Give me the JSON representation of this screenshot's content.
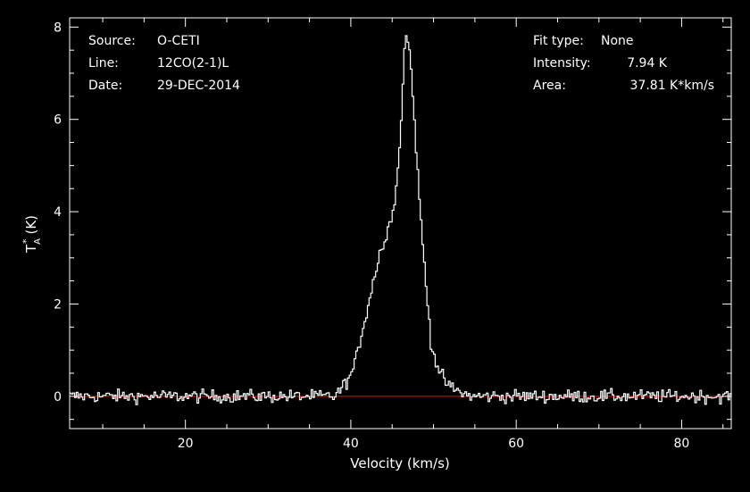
{
  "chart_data": {
    "type": "line",
    "subtype": "step",
    "xlabel": "Velocity (km/s)",
    "ylabel": "T",
    "ylabel_sub": "A",
    "ylabel_sup": "*",
    "ylabel_unit": "(K)",
    "xlim": [
      6,
      86
    ],
    "ylim": [
      -0.7,
      8.2
    ],
    "xticks": [
      20,
      40,
      60,
      80
    ],
    "yticks": [
      0,
      2,
      4,
      6,
      8
    ],
    "grid": false,
    "baseline": {
      "value": 0,
      "color": "#ff0000"
    },
    "series_color": "#ffffff",
    "annotations_left": [
      {
        "key": "Source:",
        "value": "O-CETI"
      },
      {
        "key": "Line:",
        "value": "12CO(2-1)L"
      },
      {
        "key": "Date:",
        "value": "29-DEC-2014"
      }
    ],
    "annotations_right": [
      {
        "key": "Fit type:",
        "value": "None"
      },
      {
        "key": "Intensity:",
        "value": "7.94 K"
      },
      {
        "key": "Area:",
        "value": "37.81 K*km/s"
      }
    ],
    "profile_points": [
      [
        38.0,
        0.0
      ],
      [
        38.5,
        0.08
      ],
      [
        39.0,
        0.2
      ],
      [
        40.0,
        0.45
      ],
      [
        40.5,
        0.7
      ],
      [
        41.0,
        1.1
      ],
      [
        41.5,
        1.5
      ],
      [
        42.0,
        1.9
      ],
      [
        42.5,
        2.3
      ],
      [
        43.0,
        2.7
      ],
      [
        43.5,
        3.15
      ],
      [
        44.0,
        3.25
      ],
      [
        44.5,
        3.6
      ],
      [
        45.0,
        4.0
      ],
      [
        45.5,
        4.5
      ],
      [
        46.0,
        5.7
      ],
      [
        46.5,
        7.5
      ],
      [
        46.8,
        7.94
      ],
      [
        47.2,
        7.3
      ],
      [
        47.7,
        6.0
      ],
      [
        48.2,
        4.5
      ],
      [
        48.7,
        3.3
      ],
      [
        49.2,
        2.2
      ],
      [
        49.7,
        1.2
      ],
      [
        50.2,
        0.8
      ],
      [
        50.7,
        0.55
      ],
      [
        51.2,
        0.38
      ],
      [
        51.7,
        0.25
      ],
      [
        52.5,
        0.15
      ],
      [
        53.5,
        0.07
      ],
      [
        54.5,
        0.0
      ]
    ],
    "noise_rms": 0.07,
    "channel_width": 0.2
  }
}
